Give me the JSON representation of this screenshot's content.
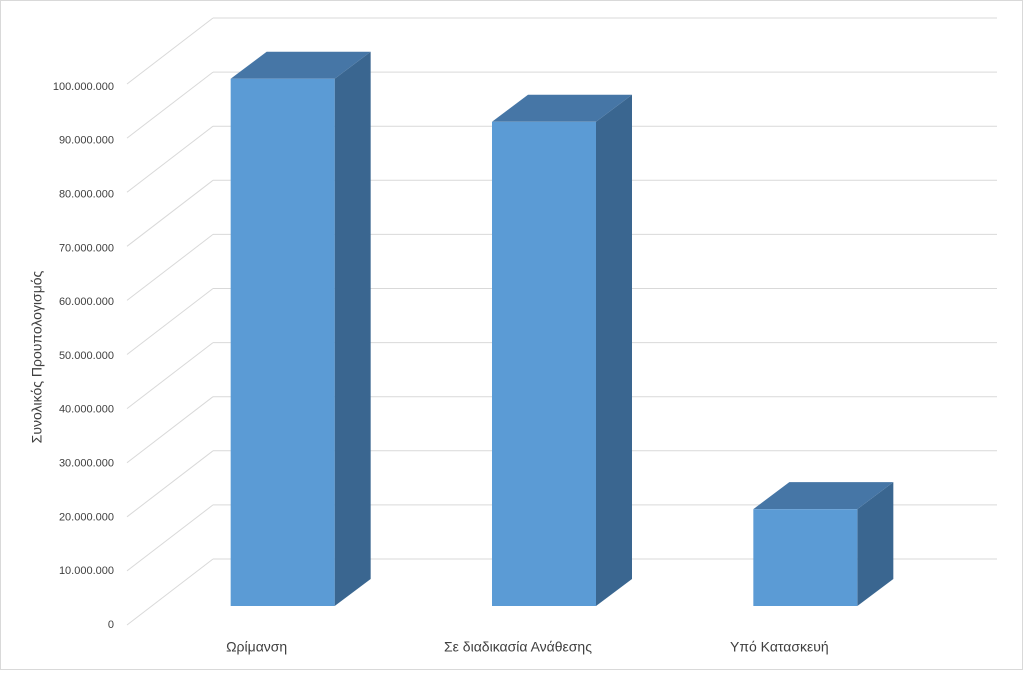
{
  "chart_data": {
    "type": "bar3d",
    "y_axis_label": "Συνολικός Προυπολογισμός",
    "categories": [
      "Ωρίμανση",
      "Σε διαδικασία Ανάθεσης",
      "Υπό Κατασκευή"
    ],
    "values": [
      98000000,
      90000000,
      18000000
    ],
    "color": "#5b9bd5",
    "ylim": [
      0,
      100000000
    ],
    "yticks": [
      0,
      {
        "value": 10000000,
        "label": "10.000.000"
      },
      {
        "value": 20000000,
        "label": "20.000.000"
      },
      {
        "value": 30000000,
        "label": "30.000.000"
      },
      {
        "value": 40000000,
        "label": "40.000.000"
      },
      {
        "value": 50000000,
        "label": "50.000.000"
      },
      {
        "value": 60000000,
        "label": "60.000.000"
      },
      {
        "value": 70000000,
        "label": "70.000.000"
      },
      {
        "value": 80000000,
        "label": "80.000.000"
      },
      {
        "value": 90000000,
        "label": "90.000.000"
      },
      {
        "value": 100000000,
        "label": "100.000.000"
      }
    ],
    "grid": true
  }
}
